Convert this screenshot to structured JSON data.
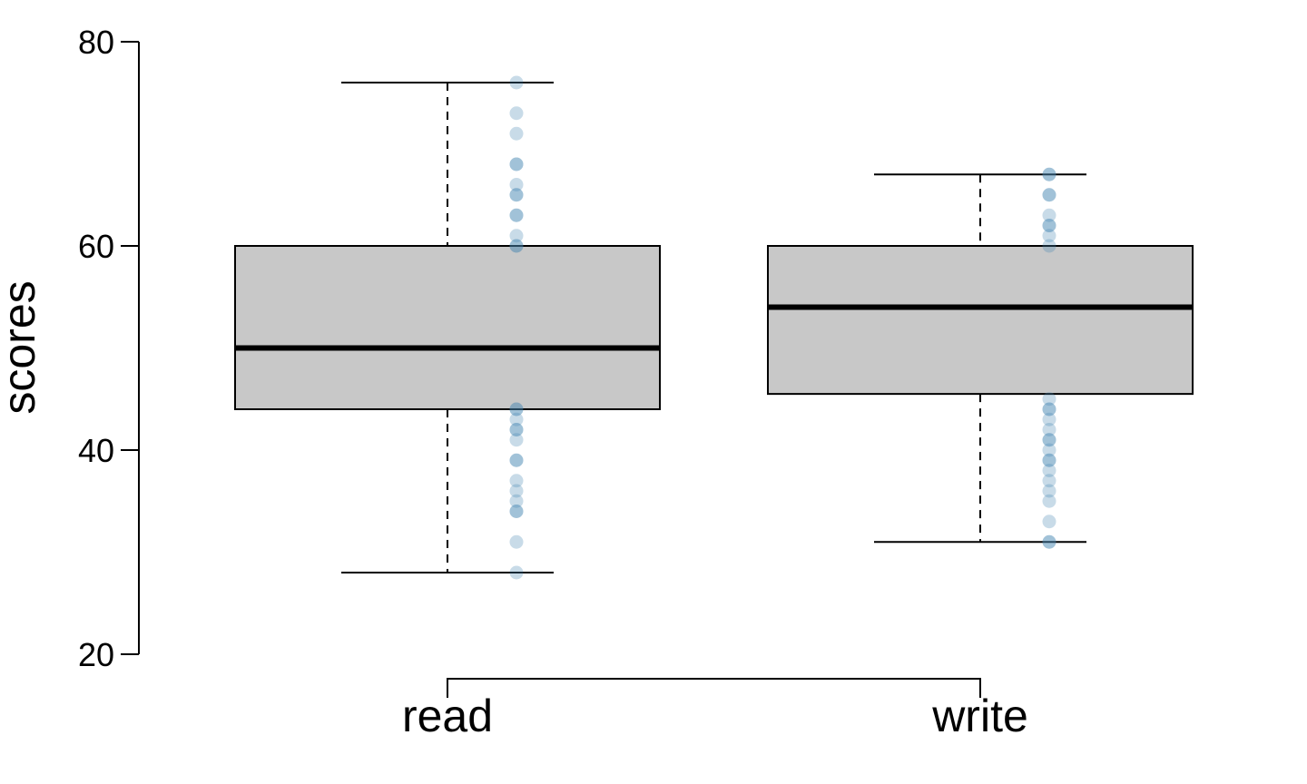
{
  "chart_data": {
    "type": "boxplot",
    "title": "",
    "xlabel": "",
    "ylabel": "scores",
    "ylim": [
      20,
      80
    ],
    "yticks": [
      20,
      40,
      60,
      80
    ],
    "ytick_labels": [
      "20",
      "40",
      "60",
      "80"
    ],
    "grid": false,
    "legend": "none",
    "categories": [
      "read",
      "write"
    ],
    "colors": {
      "box_fill": "#c8c8c8",
      "box_stroke": "#000000",
      "median": "#000000",
      "points": "#4a87b3"
    },
    "boxes": [
      {
        "name": "read",
        "min": 28,
        "q1": 44,
        "median": 50,
        "q3": 60,
        "max": 76,
        "points": [
          76,
          73,
          71,
          68,
          68,
          66,
          65,
          65,
          63,
          63,
          61,
          60,
          60,
          44,
          44,
          43,
          42,
          42,
          41,
          39,
          39,
          37,
          36,
          35,
          34,
          34,
          31,
          28
        ]
      },
      {
        "name": "write",
        "min": 31,
        "q1": 45.5,
        "median": 54,
        "q3": 60,
        "max": 67,
        "points": [
          67,
          67,
          65,
          65,
          63,
          62,
          62,
          61,
          60,
          45,
          44,
          44,
          43,
          42,
          41,
          41,
          40,
          39,
          39,
          38,
          37,
          36,
          35,
          33,
          31,
          31
        ]
      }
    ]
  }
}
